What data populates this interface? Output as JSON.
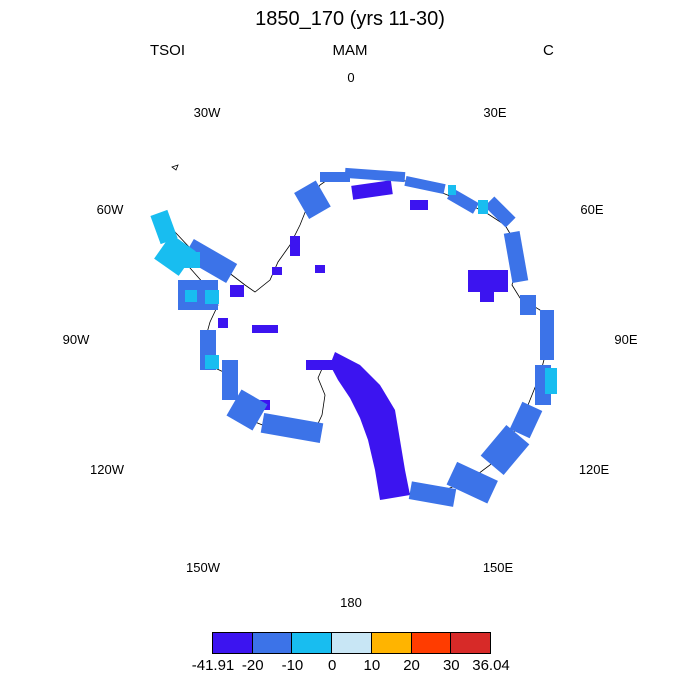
{
  "header": {
    "title": "1850_170 (yrs 11-30)",
    "variable": "TSOI",
    "season": "MAM",
    "units": "C"
  },
  "map": {
    "projection": "south-polar-stereographic",
    "longitude_labels": [
      "0",
      "30E",
      "60E",
      "90E",
      "120E",
      "150E",
      "180",
      "150W",
      "120W",
      "90W",
      "60W",
      "30W"
    ]
  },
  "legend": {
    "colors": [
      "#3c14f0",
      "#3c73e8",
      "#18bdf0",
      "#c8e6f5",
      "#ffb400",
      "#ff3c00",
      "#d72a28"
    ],
    "labels": [
      "-41.91",
      "-20",
      "-10",
      "0",
      "10",
      "20",
      "30",
      "36.04"
    ]
  }
}
